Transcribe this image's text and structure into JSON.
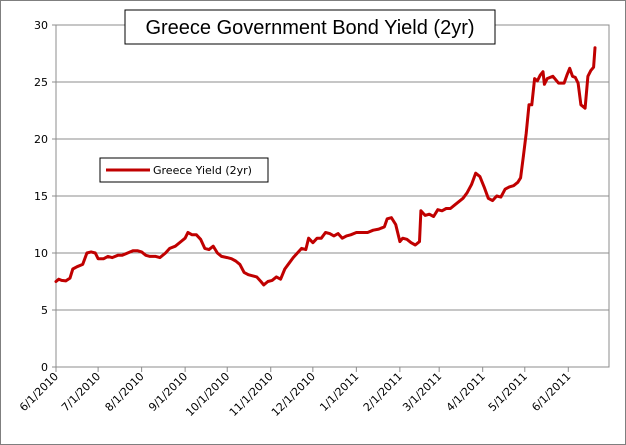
{
  "chart_data": {
    "type": "line",
    "title": "Greece Government Bond Yield (2yr)",
    "xlabel": "",
    "ylabel": "",
    "ylim": [
      0,
      30
    ],
    "yticks": [
      0,
      5,
      10,
      15,
      20,
      25,
      30
    ],
    "xlim": [
      "6/1/2010",
      "6/30/2011"
    ],
    "xticks": [
      "6/1/2010",
      "7/1/2010",
      "8/1/2010",
      "9/1/2010",
      "10/1/2010",
      "11/1/2010",
      "12/1/2010",
      "1/1/2011",
      "2/1/2011",
      "3/1/2011",
      "4/1/2011",
      "5/1/2011",
      "6/1/2011"
    ],
    "grid": {
      "horizontal": true,
      "vertical": false
    },
    "legend_position": "left-middle",
    "colors": {
      "series": "#c00000",
      "grid": "#8c8c8c",
      "axis": "#8c8c8c"
    },
    "series": [
      {
        "name": "Greece Yield (2yr)",
        "points": [
          [
            "6/1/2010",
            7.5
          ],
          [
            "6/3/2010",
            7.7
          ],
          [
            "6/5/2010",
            7.6
          ],
          [
            "6/8/2010",
            7.55
          ],
          [
            "6/11/2010",
            7.8
          ],
          [
            "6/13/2010",
            8.6
          ],
          [
            "6/16/2010",
            8.8
          ],
          [
            "6/20/2010",
            9.0
          ],
          [
            "6/23/2010",
            10.0
          ],
          [
            "6/26/2010",
            10.1
          ],
          [
            "6/29/2010",
            10.0
          ],
          [
            "7/1/2010",
            9.5
          ],
          [
            "7/5/2010",
            9.5
          ],
          [
            "7/8/2010",
            9.7
          ],
          [
            "7/11/2010",
            9.6
          ],
          [
            "7/15/2010",
            9.8
          ],
          [
            "7/18/2010",
            9.8
          ],
          [
            "7/22/2010",
            10.0
          ],
          [
            "7/26/2010",
            10.2
          ],
          [
            "7/29/2010",
            10.2
          ],
          [
            "8/1/2010",
            10.1
          ],
          [
            "8/4/2010",
            9.8
          ],
          [
            "8/7/2010",
            9.7
          ],
          [
            "8/11/2010",
            9.7
          ],
          [
            "8/14/2010",
            9.6
          ],
          [
            "8/18/2010",
            10.0
          ],
          [
            "8/21/2010",
            10.4
          ],
          [
            "8/25/2010",
            10.6
          ],
          [
            "8/29/2010",
            11.0
          ],
          [
            "9/1/2010",
            11.3
          ],
          [
            "9/3/2010",
            11.8
          ],
          [
            "9/6/2010",
            11.6
          ],
          [
            "9/9/2010",
            11.6
          ],
          [
            "9/12/2010",
            11.2
          ],
          [
            "9/15/2010",
            10.4
          ],
          [
            "9/18/2010",
            10.3
          ],
          [
            "9/21/2010",
            10.6
          ],
          [
            "9/24/2010",
            10.0
          ],
          [
            "9/27/2010",
            9.7
          ],
          [
            "10/1/2010",
            9.6
          ],
          [
            "10/4/2010",
            9.5
          ],
          [
            "10/7/2010",
            9.3
          ],
          [
            "10/10/2010",
            9.0
          ],
          [
            "10/13/2010",
            8.3
          ],
          [
            "10/16/2010",
            8.1
          ],
          [
            "10/19/2010",
            8.0
          ],
          [
            "10/22/2010",
            7.9
          ],
          [
            "10/25/2010",
            7.5
          ],
          [
            "10/27/2010",
            7.2
          ],
          [
            "10/30/2010",
            7.5
          ],
          [
            "11/2/2010",
            7.6
          ],
          [
            "11/5/2010",
            7.9
          ],
          [
            "11/8/2010",
            7.7
          ],
          [
            "11/11/2010",
            8.6
          ],
          [
            "11/14/2010",
            9.1
          ],
          [
            "11/17/2010",
            9.6
          ],
          [
            "11/20/2010",
            10.0
          ],
          [
            "11/23/2010",
            10.4
          ],
          [
            "11/26/2010",
            10.3
          ],
          [
            "11/28/2010",
            11.3
          ],
          [
            "12/1/2010",
            10.9
          ],
          [
            "12/4/2010",
            11.3
          ],
          [
            "12/7/2010",
            11.3
          ],
          [
            "12/10/2010",
            11.8
          ],
          [
            "12/13/2010",
            11.7
          ],
          [
            "12/16/2010",
            11.5
          ],
          [
            "12/19/2010",
            11.7
          ],
          [
            "12/22/2010",
            11.3
          ],
          [
            "12/25/2010",
            11.5
          ],
          [
            "12/28/2010",
            11.6
          ],
          [
            "1/1/2011",
            11.8
          ],
          [
            "1/5/2011",
            11.8
          ],
          [
            "1/9/2011",
            11.8
          ],
          [
            "1/13/2011",
            12.0
          ],
          [
            "1/17/2011",
            12.1
          ],
          [
            "1/21/2011",
            12.3
          ],
          [
            "1/23/2011",
            13.0
          ],
          [
            "1/26/2011",
            13.1
          ],
          [
            "1/29/2011",
            12.5
          ],
          [
            "2/1/2011",
            11.0
          ],
          [
            "2/3/2011",
            11.3
          ],
          [
            "2/6/2011",
            11.2
          ],
          [
            "2/9/2011",
            10.9
          ],
          [
            "2/12/2011",
            10.7
          ],
          [
            "2/15/2011",
            11.0
          ],
          [
            "2/16/2011",
            13.7
          ],
          [
            "2/19/2011",
            13.3
          ],
          [
            "2/22/2011",
            13.4
          ],
          [
            "2/25/2011",
            13.2
          ],
          [
            "2/28/2011",
            13.8
          ],
          [
            "3/3/2011",
            13.7
          ],
          [
            "3/6/2011",
            13.9
          ],
          [
            "3/9/2011",
            13.9
          ],
          [
            "3/12/2011",
            14.2
          ],
          [
            "3/15/2011",
            14.5
          ],
          [
            "3/18/2011",
            14.8
          ],
          [
            "3/21/2011",
            15.3
          ],
          [
            "3/24/2011",
            16.0
          ],
          [
            "3/27/2011",
            17.0
          ],
          [
            "3/30/2011",
            16.7
          ],
          [
            "4/2/2011",
            15.8
          ],
          [
            "4/5/2011",
            14.8
          ],
          [
            "4/8/2011",
            14.6
          ],
          [
            "4/11/2011",
            15.0
          ],
          [
            "4/14/2011",
            14.9
          ],
          [
            "4/17/2011",
            15.6
          ],
          [
            "4/20/2011",
            15.8
          ],
          [
            "4/23/2011",
            15.9
          ],
          [
            "4/26/2011",
            16.2
          ],
          [
            "4/28/2011",
            16.6
          ],
          [
            "4/30/2011",
            18.5
          ],
          [
            "5/2/2011",
            20.5
          ],
          [
            "5/4/2011",
            23.0
          ],
          [
            "5/6/2011",
            23.0
          ],
          [
            "5/8/2011",
            25.3
          ],
          [
            "5/10/2011",
            25.1
          ],
          [
            "5/12/2011",
            25.6
          ],
          [
            "5/14/2011",
            25.9
          ],
          [
            "5/15/2011",
            24.8
          ],
          [
            "5/17/2011",
            25.3
          ],
          [
            "5/19/2011",
            25.4
          ],
          [
            "5/21/2011",
            25.5
          ],
          [
            "5/23/2011",
            25.2
          ],
          [
            "5/25/2011",
            24.9
          ],
          [
            "5/27/2011",
            24.9
          ],
          [
            "5/29/2011",
            24.9
          ],
          [
            "5/31/2011",
            25.6
          ],
          [
            "6/2/2011",
            26.2
          ],
          [
            "6/4/2011",
            25.5
          ],
          [
            "6/6/2011",
            25.4
          ],
          [
            "6/8/2011",
            24.9
          ],
          [
            "6/10/2011",
            23.0
          ],
          [
            "6/13/2011",
            22.7
          ],
          [
            "6/15/2011",
            25.5
          ],
          [
            "6/17/2011",
            26.0
          ],
          [
            "6/19/2011",
            26.3
          ],
          [
            "6/20/2011",
            28.0
          ]
        ]
      }
    ]
  }
}
